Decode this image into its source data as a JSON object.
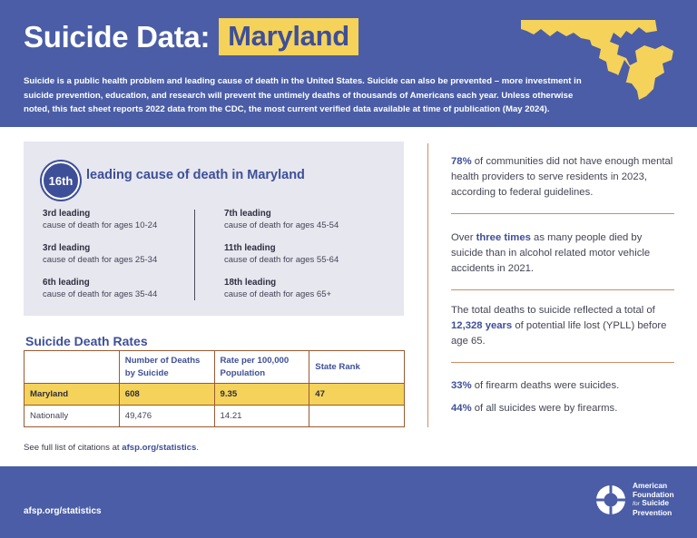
{
  "header": {
    "title": "Suicide Data:",
    "state": "Maryland",
    "intro": "Suicide is a public health problem and leading cause of death in the United States. Suicide can also be prevented – more investment in suicide prevention, education, and research will prevent the untimely deaths of thousands of Americans each year. Unless otherwise noted, this fact sheet reports 2022 data from the CDC, the most current verified data available at time of publication (May 2024).",
    "map_icon": "maryland-state-map",
    "colors": {
      "header_bg": "#4a5da6",
      "accent_yellow": "#f5d25a",
      "brand_blue": "#3e4f99"
    }
  },
  "ranking": {
    "badge": "16th",
    "headline": "leading cause of death in Maryland",
    "left": [
      {
        "label": "3rd leading",
        "desc": "cause of death for ages 10-24"
      },
      {
        "label": "3rd leading",
        "desc": "cause of death for ages 25-34"
      },
      {
        "label": "6th leading",
        "desc": "cause of death for ages 35-44"
      }
    ],
    "right": [
      {
        "label": "7th leading",
        "desc": "cause of death for ages 45-54"
      },
      {
        "label": "11th leading",
        "desc": "cause of death for ages 55-64"
      },
      {
        "label": "18th leading",
        "desc": "cause of death for ages 65+"
      }
    ]
  },
  "rates": {
    "title": "Suicide Death Rates",
    "headers": [
      "",
      "Number of Deaths by Suicide",
      "Rate per 100,000 Population",
      "State Rank"
    ],
    "rows": [
      [
        "Maryland",
        "608",
        "9.35",
        "47"
      ],
      [
        "Nationally",
        "49,476",
        "14.21",
        ""
      ]
    ]
  },
  "citations": {
    "prefix": "See full list of citations at ",
    "link": "afsp.org/statistics",
    "suffix": "."
  },
  "facts": {
    "f1": {
      "hl": "78%",
      "text": " of communities did not have enough mental health providers to serve residents in 2023, according to federal guidelines."
    },
    "f2": {
      "pre": "Over ",
      "hl": "three times",
      "text": " as many people died by suicide than in alcohol related motor vehicle accidents in 2021."
    },
    "f3": {
      "pre": "The total deaths to suicide reflected a total of ",
      "hl": "12,328 years",
      "text": " of potential life lost (YPLL) before age 65."
    },
    "f4": {
      "hl": "33%",
      "text": " of firearm deaths were suicides."
    },
    "f5": {
      "hl": "44%",
      "text": " of all suicides were by firearms."
    }
  },
  "footer": {
    "link": "afsp.org/statistics",
    "logo_icon": "lifesaver-ring-logo",
    "logo_lines": [
      "American",
      "Foundation",
      "for",
      "Suicide",
      "Prevention"
    ]
  }
}
